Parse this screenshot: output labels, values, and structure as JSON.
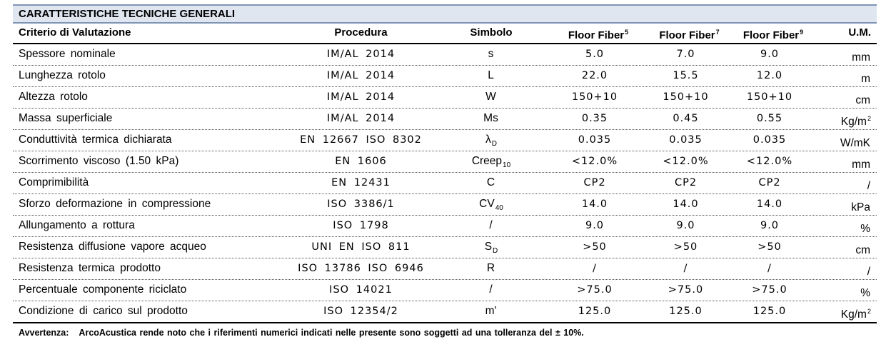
{
  "title": "CARATTERISTICHE TECNICHE GENERALI",
  "headers": {
    "criterio": "Criterio di Valutazione",
    "procedura": "Procedura",
    "simbolo": "Simbolo",
    "ff5": "Floor Fiber",
    "ff5_sup": "5",
    "ff7": "Floor Fiber",
    "ff7_sup": "7",
    "ff9": "Floor Fiber",
    "ff9_sup": "9",
    "um": "U.M."
  },
  "rows": [
    {
      "criterio": "Spessore nominale",
      "procedura": "IM/AL 2014",
      "simbolo": "s",
      "simbolo_sub": "",
      "v5": "5.0",
      "v7": "7.0",
      "v9": "9.0",
      "um": "mm",
      "um_sup": ""
    },
    {
      "criterio": "Lunghezza rotolo",
      "procedura": "IM/AL 2014",
      "simbolo": "L",
      "simbolo_sub": "",
      "v5": "22.0",
      "v7": "15.5",
      "v9": "12.0",
      "um": "m",
      "um_sup": ""
    },
    {
      "criterio": "Altezza rotolo",
      "procedura": "IM/AL 2014",
      "simbolo": "W",
      "simbolo_sub": "",
      "v5": "150+10",
      "v7": "150+10",
      "v9": "150+10",
      "um": "cm",
      "um_sup": ""
    },
    {
      "criterio": "Massa superficiale",
      "procedura": "IM/AL 2014",
      "simbolo": "Ms",
      "simbolo_sub": "",
      "v5": "0.35",
      "v7": "0.45",
      "v9": "0.55",
      "um": "Kg/m",
      "um_sup": "2"
    },
    {
      "criterio": "Conduttività termica dichiarata",
      "procedura": "EN 12667 ISO 8302",
      "simbolo": "λ",
      "simbolo_sub": "D",
      "v5": "0.035",
      "v7": "0.035",
      "v9": "0.035",
      "um": "W/mK",
      "um_sup": ""
    },
    {
      "criterio": "Scorrimento viscoso (1.50 kPa)",
      "procedura": "EN 1606",
      "simbolo": "Creep",
      "simbolo_sub": "10",
      "v5": "<12.0%",
      "v7": "<12.0%",
      "v9": "<12.0%",
      "um": "mm",
      "um_sup": ""
    },
    {
      "criterio": "Comprimibilità",
      "procedura": "EN 12431",
      "simbolo": "C",
      "simbolo_sub": "",
      "v5": "CP2",
      "v7": "CP2",
      "v9": "CP2",
      "um": "/",
      "um_sup": ""
    },
    {
      "criterio": "Sforzo deformazione in compressione",
      "procedura": "ISO 3386/1",
      "simbolo": "CV",
      "simbolo_sub": "40",
      "v5": "14.0",
      "v7": "14.0",
      "v9": "14.0",
      "um": "kPa",
      "um_sup": ""
    },
    {
      "criterio": "Allungamento a rottura",
      "procedura": "ISO 1798",
      "simbolo": "/",
      "simbolo_sub": "",
      "v5": "9.0",
      "v7": "9.0",
      "v9": "9.0",
      "um": "%",
      "um_sup": ""
    },
    {
      "criterio": "Resistenza diffusione vapore acqueo",
      "procedura": "UNI EN ISO 811",
      "simbolo": "S",
      "simbolo_sub": "D",
      "v5": ">50",
      "v7": ">50",
      "v9": ">50",
      "um": "cm",
      "um_sup": ""
    },
    {
      "criterio": "Resistenza termica prodotto",
      "procedura": "ISO 13786 ISO 6946",
      "simbolo": "R",
      "simbolo_sub": "",
      "v5": "/",
      "v7": "/",
      "v9": "/",
      "um": "/",
      "um_sup": ""
    },
    {
      "criterio": "Percentuale componente riciclato",
      "procedura": "ISO 14021",
      "simbolo": "/",
      "simbolo_sub": "",
      "v5": ">75.0",
      "v7": ">75.0",
      "v9": ">75.0",
      "um": "%",
      "um_sup": ""
    },
    {
      "criterio": "Condizione di carico sul prodotto",
      "procedura": "ISO 12354/2",
      "simbolo": "m'",
      "simbolo_sub": "",
      "v5": "125.0",
      "v7": "125.0",
      "v9": "125.0",
      "um": "Kg/m",
      "um_sup": "2"
    }
  ],
  "note": {
    "label": "Avvertenza:",
    "text": "ArcoAcustica rende noto che i riferimenti numerici indicati nelle presente sono soggetti ad una tolleranza del ± 10%."
  }
}
